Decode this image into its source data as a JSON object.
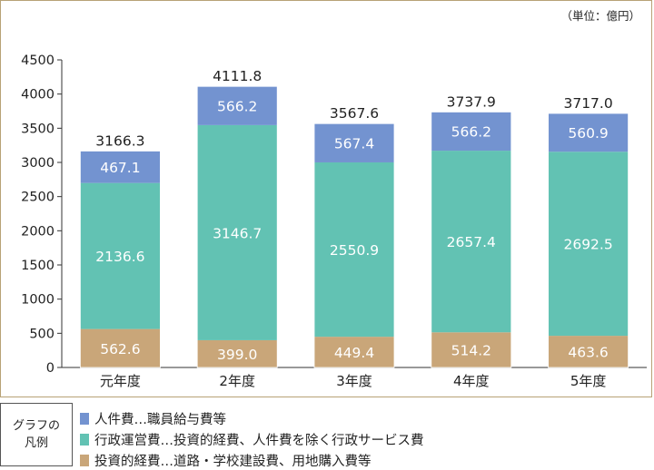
{
  "unit_note": "（単位：億円）",
  "legend": {
    "title_line1": "グラフの",
    "title_line2": "凡例",
    "items": [
      {
        "label": "人件費…職員給与費等",
        "color": "#7393d0"
      },
      {
        "label": "行政運営費…投資的経費、人件費を除く行政サービス費",
        "color": "#62c2b3"
      },
      {
        "label": "投資的経費…道路・学校建設費、用地購入費等",
        "color": "#c9a679"
      }
    ]
  },
  "chart_data": {
    "type": "bar",
    "stacked": true,
    "categories": [
      "元年度",
      "2年度",
      "3年度",
      "4年度",
      "5年度"
    ],
    "series": [
      {
        "name": "投資的経費",
        "color": "#c9a679",
        "values": [
          562.6,
          399.0,
          449.4,
          514.2,
          463.6
        ]
      },
      {
        "name": "行政運営費",
        "color": "#62c2b3",
        "values": [
          2136.6,
          3146.7,
          2550.9,
          2657.4,
          2692.5
        ]
      },
      {
        "name": "人件費",
        "color": "#7393d0",
        "values": [
          467.1,
          566.2,
          567.4,
          566.2,
          560.9
        ]
      }
    ],
    "totals": [
      3166.3,
      4111.8,
      3567.6,
      3737.9,
      3717.0
    ],
    "ylim": [
      0,
      4500
    ],
    "yticks": [
      0,
      500,
      1000,
      1500,
      2000,
      2500,
      3000,
      3500,
      4000,
      4500
    ],
    "grid": false,
    "title": "",
    "xlabel": "",
    "ylabel": ""
  }
}
